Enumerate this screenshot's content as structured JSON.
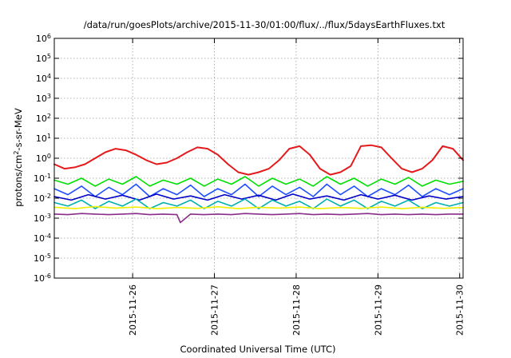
{
  "chart_data": {
    "type": "line",
    "title": "/data/run/goesPlots/archive/2015-11-30/01:00/flux/../flux/5daysEarthFluxes.txt",
    "xlabel": "Coordinated Universal Time (UTC)",
    "ylabel_parts": {
      "base": "protons/cm",
      "exp": "2",
      "rest": "-s-sr-MeV"
    },
    "yscale": "log",
    "ylim": [
      1e-06,
      1000000.0
    ],
    "xlim": [
      "2015-11-25T01:00",
      "2015-11-30T01:00"
    ],
    "grid": true,
    "legend": "none",
    "x_ticks": [
      {
        "label": "2015-11-26",
        "value": "2015-11-26T00:00"
      },
      {
        "label": "2015-11-27",
        "value": "2015-11-27T00:00"
      },
      {
        "label": "2015-11-28",
        "value": "2015-11-28T00:00"
      },
      {
        "label": "2015-11-29",
        "value": "2015-11-29T00:00"
      },
      {
        "label": "2015-11-30",
        "value": "2015-11-30T00:00"
      }
    ],
    "y_ticks": [
      {
        "base": "10",
        "exp": "-6",
        "value": 1e-06
      },
      {
        "base": "10",
        "exp": "-5",
        "value": 1e-05
      },
      {
        "base": "10",
        "exp": "-4",
        "value": 0.0001
      },
      {
        "base": "10",
        "exp": "-3",
        "value": 0.001
      },
      {
        "base": "10",
        "exp": "-2",
        "value": 0.01
      },
      {
        "base": "10",
        "exp": "-1",
        "value": 0.1
      },
      {
        "base": "10",
        "exp": "0",
        "value": 1
      },
      {
        "base": "10",
        "exp": "1",
        "value": 10
      },
      {
        "base": "10",
        "exp": "2",
        "value": 100
      },
      {
        "base": "10",
        "exp": "3",
        "value": 1000
      },
      {
        "base": "10",
        "exp": "4",
        "value": 10000
      },
      {
        "base": "10",
        "exp": "5",
        "value": 100000
      },
      {
        "base": "10",
        "exp": "6",
        "value": 1000000
      }
    ],
    "series": [
      {
        "color": "#e41a1c",
        "x": [
          "2015-11-25T01:00",
          "2015-11-25T04:00",
          "2015-11-25T07:00",
          "2015-11-25T10:00",
          "2015-11-25T13:00",
          "2015-11-25T16:00",
          "2015-11-25T19:00",
          "2015-11-25T22:00",
          "2015-11-26T01:00",
          "2015-11-26T04:00",
          "2015-11-26T07:00",
          "2015-11-26T10:00",
          "2015-11-26T13:00",
          "2015-11-26T16:00",
          "2015-11-26T19:00",
          "2015-11-26T22:00",
          "2015-11-27T01:00",
          "2015-11-27T04:00",
          "2015-11-27T07:00",
          "2015-11-27T10:00",
          "2015-11-27T13:00",
          "2015-11-27T16:00",
          "2015-11-27T19:00",
          "2015-11-27T22:00",
          "2015-11-28T01:00",
          "2015-11-28T04:00",
          "2015-11-28T07:00",
          "2015-11-28T10:00",
          "2015-11-28T13:00",
          "2015-11-28T16:00",
          "2015-11-28T19:00",
          "2015-11-28T22:00",
          "2015-11-29T01:00",
          "2015-11-29T04:00",
          "2015-11-29T07:00",
          "2015-11-29T10:00",
          "2015-11-29T13:00",
          "2015-11-29T16:00",
          "2015-11-29T19:00",
          "2015-11-29T22:00",
          "2015-11-30T01:00"
        ],
        "y": [
          0.5,
          0.3,
          0.35,
          0.5,
          1.0,
          2.0,
          3.0,
          2.5,
          1.5,
          0.8,
          0.5,
          0.6,
          1.0,
          2.0,
          3.5,
          3.0,
          1.5,
          0.5,
          0.2,
          0.15,
          0.2,
          0.3,
          0.8,
          3.0,
          4.0,
          1.5,
          0.3,
          0.15,
          0.2,
          0.4,
          4.0,
          4.5,
          3.5,
          1.0,
          0.3,
          0.2,
          0.3,
          0.8,
          4.0,
          3.0,
          0.8
        ]
      },
      {
        "color": "#00e000",
        "x": [
          "2015-11-25T01:00",
          "2015-11-25T05:00",
          "2015-11-25T09:00",
          "2015-11-25T13:00",
          "2015-11-25T17:00",
          "2015-11-25T21:00",
          "2015-11-26T01:00",
          "2015-11-26T05:00",
          "2015-11-26T09:00",
          "2015-11-26T13:00",
          "2015-11-26T17:00",
          "2015-11-26T21:00",
          "2015-11-27T01:00",
          "2015-11-27T05:00",
          "2015-11-27T09:00",
          "2015-11-27T13:00",
          "2015-11-27T17:00",
          "2015-11-27T21:00",
          "2015-11-28T01:00",
          "2015-11-28T05:00",
          "2015-11-28T09:00",
          "2015-11-28T13:00",
          "2015-11-28T17:00",
          "2015-11-28T21:00",
          "2015-11-29T01:00",
          "2015-11-29T05:00",
          "2015-11-29T09:00",
          "2015-11-29T13:00",
          "2015-11-29T17:00",
          "2015-11-29T21:00",
          "2015-11-30T01:00"
        ],
        "y": [
          0.08,
          0.05,
          0.1,
          0.04,
          0.09,
          0.05,
          0.12,
          0.04,
          0.08,
          0.05,
          0.1,
          0.04,
          0.09,
          0.05,
          0.12,
          0.04,
          0.1,
          0.05,
          0.09,
          0.04,
          0.12,
          0.05,
          0.1,
          0.04,
          0.09,
          0.05,
          0.11,
          0.04,
          0.08,
          0.05,
          0.07
        ]
      },
      {
        "color": "#1f4fff",
        "x": [
          "2015-11-25T01:00",
          "2015-11-25T05:00",
          "2015-11-25T09:00",
          "2015-11-25T13:00",
          "2015-11-25T17:00",
          "2015-11-25T21:00",
          "2015-11-26T01:00",
          "2015-11-26T05:00",
          "2015-11-26T09:00",
          "2015-11-26T13:00",
          "2015-11-26T17:00",
          "2015-11-26T21:00",
          "2015-11-27T01:00",
          "2015-11-27T05:00",
          "2015-11-27T09:00",
          "2015-11-27T13:00",
          "2015-11-27T17:00",
          "2015-11-27T21:00",
          "2015-11-28T01:00",
          "2015-11-28T05:00",
          "2015-11-28T09:00",
          "2015-11-28T13:00",
          "2015-11-28T17:00",
          "2015-11-28T21:00",
          "2015-11-29T01:00",
          "2015-11-29T05:00",
          "2015-11-29T09:00",
          "2015-11-29T13:00",
          "2015-11-29T17:00",
          "2015-11-29T21:00",
          "2015-11-30T01:00"
        ],
        "y": [
          0.03,
          0.015,
          0.04,
          0.012,
          0.035,
          0.015,
          0.05,
          0.012,
          0.03,
          0.015,
          0.045,
          0.012,
          0.03,
          0.015,
          0.05,
          0.012,
          0.04,
          0.015,
          0.035,
          0.012,
          0.05,
          0.015,
          0.04,
          0.012,
          0.03,
          0.015,
          0.045,
          0.012,
          0.03,
          0.015,
          0.03
        ]
      },
      {
        "color": "#0000c8",
        "x": [
          "2015-11-25T01:00",
          "2015-11-25T06:00",
          "2015-11-25T11:00",
          "2015-11-25T16:00",
          "2015-11-25T21:00",
          "2015-11-26T02:00",
          "2015-11-26T07:00",
          "2015-11-26T12:00",
          "2015-11-26T17:00",
          "2015-11-26T22:00",
          "2015-11-27T03:00",
          "2015-11-27T08:00",
          "2015-11-27T13:00",
          "2015-11-27T18:00",
          "2015-11-27T23:00",
          "2015-11-28T04:00",
          "2015-11-28T09:00",
          "2015-11-28T14:00",
          "2015-11-28T19:00",
          "2015-11-29T00:00",
          "2015-11-29T05:00",
          "2015-11-29T10:00",
          "2015-11-29T15:00",
          "2015-11-29T20:00",
          "2015-11-30T01:00"
        ],
        "y": [
          0.012,
          0.008,
          0.015,
          0.009,
          0.014,
          0.008,
          0.016,
          0.009,
          0.013,
          0.008,
          0.015,
          0.009,
          0.014,
          0.008,
          0.016,
          0.009,
          0.013,
          0.008,
          0.015,
          0.009,
          0.014,
          0.008,
          0.013,
          0.009,
          0.012
        ]
      },
      {
        "color": "#00b0b0",
        "x": [
          "2015-11-25T01:00",
          "2015-11-25T05:00",
          "2015-11-25T09:00",
          "2015-11-25T13:00",
          "2015-11-25T17:00",
          "2015-11-25T21:00",
          "2015-11-26T01:00",
          "2015-11-26T05:00",
          "2015-11-26T09:00",
          "2015-11-26T13:00",
          "2015-11-26T17:00",
          "2015-11-26T21:00",
          "2015-11-27T01:00",
          "2015-11-27T05:00",
          "2015-11-27T09:00",
          "2015-11-27T13:00",
          "2015-11-27T17:00",
          "2015-11-27T21:00",
          "2015-11-28T01:00",
          "2015-11-28T05:00",
          "2015-11-28T09:00",
          "2015-11-28T13:00",
          "2015-11-28T17:00",
          "2015-11-28T21:00",
          "2015-11-29T01:00",
          "2015-11-29T05:00",
          "2015-11-29T09:00",
          "2015-11-29T13:00",
          "2015-11-29T17:00",
          "2015-11-29T21:00",
          "2015-11-30T01:00"
        ],
        "y": [
          0.006,
          0.004,
          0.008,
          0.003,
          0.007,
          0.004,
          0.009,
          0.003,
          0.006,
          0.004,
          0.008,
          0.003,
          0.007,
          0.004,
          0.009,
          0.003,
          0.008,
          0.004,
          0.007,
          0.003,
          0.009,
          0.004,
          0.008,
          0.003,
          0.007,
          0.004,
          0.008,
          0.003,
          0.006,
          0.004,
          0.006
        ]
      },
      {
        "color": "#f0f000",
        "x": [
          "2015-11-25T01:00",
          "2015-11-25T07:00",
          "2015-11-25T13:00",
          "2015-11-25T19:00",
          "2015-11-26T01:00",
          "2015-11-26T07:00",
          "2015-11-26T13:00",
          "2015-11-26T19:00",
          "2015-11-27T01:00",
          "2015-11-27T07:00",
          "2015-11-27T13:00",
          "2015-11-27T19:00",
          "2015-11-28T01:00",
          "2015-11-28T07:00",
          "2015-11-28T13:00",
          "2015-11-28T19:00",
          "2015-11-29T01:00",
          "2015-11-29T07:00",
          "2015-11-29T13:00",
          "2015-11-29T19:00",
          "2015-11-30T01:00"
        ],
        "y": [
          0.0035,
          0.003,
          0.0038,
          0.0032,
          0.0036,
          0.003,
          0.0034,
          0.0031,
          0.0037,
          0.003,
          0.0035,
          0.0032,
          0.0036,
          0.003,
          0.0034,
          0.0031,
          0.0036,
          0.003,
          0.0035,
          0.0031,
          0.0034
        ]
      },
      {
        "color": "#8b2c8b",
        "x": [
          "2015-11-25T01:00",
          "2015-11-25T05:00",
          "2015-11-25T09:00",
          "2015-11-25T13:00",
          "2015-11-25T17:00",
          "2015-11-25T21:00",
          "2015-11-26T01:00",
          "2015-11-26T05:00",
          "2015-11-26T09:00",
          "2015-11-26T13:00",
          "2015-11-26T14:00",
          "2015-11-26T17:00",
          "2015-11-26T21:00",
          "2015-11-27T01:00",
          "2015-11-27T05:00",
          "2015-11-27T09:00",
          "2015-11-27T13:00",
          "2015-11-27T17:00",
          "2015-11-27T21:00",
          "2015-11-28T01:00",
          "2015-11-28T05:00",
          "2015-11-28T09:00",
          "2015-11-28T13:00",
          "2015-11-28T17:00",
          "2015-11-28T21:00",
          "2015-11-29T01:00",
          "2015-11-29T05:00",
          "2015-11-29T09:00",
          "2015-11-29T13:00",
          "2015-11-29T17:00",
          "2015-11-29T21:00",
          "2015-11-30T01:00"
        ],
        "y": [
          0.0016,
          0.0015,
          0.0017,
          0.0016,
          0.0015,
          0.0016,
          0.0017,
          0.0015,
          0.0016,
          0.0015,
          0.0006,
          0.0016,
          0.0015,
          0.0016,
          0.0015,
          0.0017,
          0.0016,
          0.0015,
          0.0016,
          0.0017,
          0.0015,
          0.0016,
          0.0015,
          0.0016,
          0.0017,
          0.0015,
          0.0016,
          0.0015,
          0.0016,
          0.0015,
          0.0016,
          0.0016
        ]
      }
    ]
  }
}
